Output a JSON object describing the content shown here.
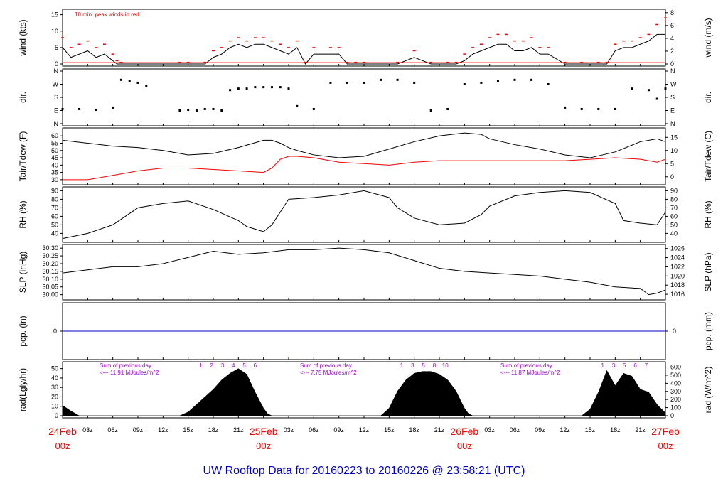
{
  "footer": {
    "title": "UW Rooftop Data for 20160223  to  20160226 @ 23:58:21  (UTC)"
  },
  "colors": {
    "black": "#000000",
    "red": "#ff0000",
    "blue": "#0000cc",
    "purple": "#9900cc",
    "date": "#ff0000"
  },
  "time_axis": {
    "date_labels": [
      {
        "day": "24Feb",
        "hour": "00z",
        "t": 0
      },
      {
        "day": "25Feb",
        "hour": "00z",
        "t": 24
      },
      {
        "day": "26Feb",
        "hour": "00z",
        "t": 48
      },
      {
        "day": "27Feb",
        "hour": "00z",
        "t": 72
      }
    ],
    "hour_ticks": [
      "03z",
      "06z",
      "09z",
      "12z",
      "15z",
      "18z",
      "21z"
    ]
  },
  "chart_data": [
    {
      "id": "wind",
      "type": "line",
      "ylabel_left": "wind (kts)",
      "ylabel_right": "wind (m/s)",
      "ylim": [
        0,
        16
      ],
      "yticks_left": [
        0,
        5,
        10,
        15
      ],
      "ylim_right": [
        0,
        8.2
      ],
      "yticks_right": [
        0,
        2,
        4,
        6,
        8
      ],
      "annotation": "10 min. peak winds in red",
      "x_hours": [
        0,
        1,
        2,
        3,
        4,
        5,
        6,
        6.5,
        7,
        14,
        15,
        17,
        18,
        19,
        20,
        21,
        22,
        23,
        24,
        25,
        26,
        27,
        28,
        29,
        30,
        32,
        33,
        34,
        35,
        36,
        40,
        42,
        44,
        46,
        47,
        48,
        49,
        50,
        51,
        52,
        53,
        54,
        55,
        56,
        57,
        58,
        60,
        62,
        64,
        65,
        66,
        67,
        68,
        69,
        70,
        71,
        72
      ],
      "series": [
        {
          "name": "wind",
          "values": [
            5,
            2,
            3,
            4,
            2,
            3,
            1,
            0,
            0,
            0,
            0,
            0,
            2,
            3,
            5,
            6,
            5,
            6,
            6,
            5,
            4,
            3,
            5,
            0,
            3,
            3,
            3,
            0,
            0,
            0,
            0,
            2,
            0,
            0,
            0,
            1,
            3,
            4,
            5,
            6,
            6,
            4,
            4,
            5,
            3,
            3,
            0,
            0,
            0,
            0,
            4,
            5,
            5,
            6,
            7,
            9,
            9
          ]
        },
        {
          "name": "peak",
          "values": [
            8,
            5,
            6,
            7,
            5,
            6,
            3,
            1,
            0.5,
            0.5,
            0.5,
            0.5,
            4,
            5,
            7,
            8,
            7,
            8,
            8,
            7,
            6,
            5,
            7,
            0.5,
            5,
            5,
            5,
            0.5,
            0.5,
            0.5,
            0.5,
            4,
            0.5,
            0.5,
            0.5,
            3,
            5,
            6,
            8,
            9,
            9,
            7,
            7,
            8,
            5,
            5,
            0.5,
            0.5,
            0.5,
            0.5,
            6,
            7,
            7,
            8,
            9,
            12,
            14
          ]
        }
      ]
    },
    {
      "id": "dir",
      "type": "scatter",
      "ylabel_left": "dir.",
      "ylabel_right": "dir.",
      "yticks_left": [
        "N",
        "E",
        "S",
        "W",
        "N"
      ],
      "yticks_right": [
        "N",
        "E",
        "S",
        "W",
        "N"
      ],
      "ylim": [
        0,
        360
      ],
      "x_hours": [
        0,
        2,
        4,
        6,
        7,
        8,
        9,
        10,
        14,
        15,
        16,
        17,
        18,
        19,
        20,
        21,
        22,
        23,
        24,
        25,
        26,
        27,
        28,
        30,
        32,
        34,
        36,
        38,
        40,
        42,
        44,
        46,
        48,
        50,
        52,
        54,
        56,
        58,
        60,
        62,
        64,
        66,
        68,
        70,
        71,
        72
      ],
      "series": [
        {
          "name": "direction",
          "values": [
            100,
            100,
            95,
            110,
            300,
            290,
            280,
            260,
            90,
            95,
            90,
            100,
            100,
            90,
            230,
            240,
            240,
            250,
            250,
            250,
            250,
            240,
            120,
            100,
            280,
            280,
            280,
            300,
            300,
            280,
            90,
            100,
            270,
            280,
            290,
            300,
            300,
            270,
            110,
            100,
            100,
            100,
            240,
            230,
            170,
            240
          ]
        }
      ]
    },
    {
      "id": "temp",
      "type": "line",
      "ylabel_left": "Tair/Tdew (F)",
      "ylabel_right": "Tair/Tdew (C)",
      "ylim": [
        28,
        64
      ],
      "yticks_left": [
        30,
        35,
        40,
        45,
        50,
        55,
        60
      ],
      "yticks_right": [
        0,
        5,
        10,
        15
      ],
      "x_hours": [
        0,
        3,
        6,
        9,
        12,
        15,
        18,
        21,
        24,
        25,
        26,
        27,
        28,
        30,
        33,
        36,
        39,
        42,
        45,
        48,
        50,
        51,
        54,
        57,
        60,
        63,
        66,
        69,
        71,
        72
      ],
      "series": [
        {
          "name": "Tair",
          "values": [
            57,
            55,
            53,
            52,
            50,
            47,
            48,
            52,
            57,
            57,
            55,
            52,
            50,
            47,
            45,
            46,
            51,
            56,
            60,
            62,
            61,
            58,
            54,
            51,
            47,
            45,
            49,
            56,
            58,
            56
          ]
        },
        {
          "name": "Tdew",
          "values": [
            30,
            30,
            33,
            36,
            38,
            38,
            37,
            36,
            35,
            38,
            44,
            46,
            46,
            45,
            42,
            41,
            40,
            42,
            43,
            43,
            43,
            43,
            43,
            43,
            43,
            44,
            45,
            44,
            42,
            44
          ]
        }
      ]
    },
    {
      "id": "rh",
      "type": "line",
      "ylabel_left": "RH (%)",
      "ylabel_right": "RH (%)",
      "ylim": [
        32,
        92
      ],
      "yticks_left": [
        40,
        50,
        60,
        70,
        80,
        90
      ],
      "yticks_right": [
        40,
        50,
        60,
        70,
        80,
        90
      ],
      "x_hours": [
        0,
        3,
        6,
        9,
        12,
        15,
        18,
        21,
        22,
        23,
        24,
        25,
        27,
        30,
        33,
        36,
        39,
        40,
        42,
        45,
        48,
        50,
        51,
        54,
        57,
        60,
        63,
        66,
        67,
        69,
        71,
        72
      ],
      "series": [
        {
          "name": "RH",
          "values": [
            34,
            40,
            50,
            70,
            75,
            78,
            68,
            55,
            48,
            45,
            42,
            50,
            80,
            82,
            85,
            90,
            82,
            70,
            58,
            50,
            52,
            62,
            72,
            84,
            88,
            90,
            88,
            75,
            55,
            52,
            50,
            65
          ]
        }
      ]
    },
    {
      "id": "slp",
      "type": "line",
      "ylabel_left": "SLP (inHg)",
      "ylabel_right": "SLP (hPa)",
      "ylim": [
        29.98,
        30.31
      ],
      "yticks_left": [
        "30.00",
        "30.05",
        "30.10",
        "30.15",
        "30.20",
        "30.25",
        "30.30"
      ],
      "yticks_right": [
        "1016",
        "1018",
        "1020",
        "1022",
        "1024",
        "1026"
      ],
      "x_hours": [
        0,
        3,
        6,
        9,
        12,
        15,
        18,
        21,
        24,
        27,
        30,
        33,
        36,
        39,
        42,
        45,
        48,
        51,
        54,
        57,
        60,
        63,
        66,
        69,
        70,
        71,
        72
      ],
      "series": [
        {
          "name": "SLP",
          "values": [
            30.14,
            30.16,
            30.18,
            30.18,
            30.2,
            30.24,
            30.28,
            30.26,
            30.27,
            30.29,
            30.29,
            30.3,
            30.29,
            30.27,
            30.22,
            30.17,
            30.15,
            30.14,
            30.13,
            30.12,
            30.1,
            30.08,
            30.05,
            30.04,
            30.0,
            30.01,
            30.03
          ]
        }
      ]
    },
    {
      "id": "pcp",
      "type": "line",
      "ylabel_left": "pcp. (in)",
      "ylabel_right": "pcp. (mm)",
      "yticks_left": [
        "0"
      ],
      "yticks_right": [
        "0"
      ],
      "x_hours": [
        0,
        72
      ],
      "series": [
        {
          "name": "precip",
          "values": [
            0,
            0
          ]
        }
      ]
    },
    {
      "id": "rad",
      "type": "area",
      "ylabel_left": "rad(Lgly/hr)",
      "ylabel_right": "rad (W/m^2)",
      "ylim": [
        0,
        55
      ],
      "yticks_left": [
        0,
        10,
        20,
        30,
        40,
        50
      ],
      "yticks_right": [
        0,
        100,
        200,
        300,
        400,
        500,
        600
      ],
      "x_hours": [
        0,
        1,
        2,
        14,
        15,
        16,
        17,
        18,
        19,
        20,
        21,
        22,
        23,
        24,
        24.5,
        25,
        38,
        39,
        40,
        41,
        42,
        43,
        44,
        45,
        46,
        47,
        48,
        48.5,
        49,
        62,
        63,
        64,
        65,
        66,
        67,
        68,
        69,
        70,
        71,
        72
      ],
      "series": [
        {
          "name": "radiation",
          "values": [
            11,
            5,
            0,
            0,
            4,
            12,
            20,
            28,
            38,
            45,
            50,
            44,
            25,
            8,
            2,
            0,
            0,
            8,
            26,
            38,
            45,
            47,
            47,
            44,
            38,
            26,
            8,
            2,
            0,
            0,
            7,
            25,
            48,
            32,
            45,
            42,
            28,
            25,
            12,
            3
          ]
        }
      ],
      "annotations": [
        {
          "lines": [
            "Sum of previous day",
            "<--- 11.91 MJoules/m^2"
          ]
        },
        {
          "lines": [
            "Sum of previous day",
            "<--- 7.75 MJoules/m^2"
          ]
        },
        {
          "lines": [
            "Sum of previous day",
            "<--- 11.87 MJoules/m^2"
          ]
        }
      ],
      "hour_markers": [
        {
          "labels": [
            "1",
            "2",
            "3",
            "4",
            "5",
            "6"
          ],
          "start": 16.5
        },
        {
          "labels": [
            "1",
            "3",
            "5",
            "8",
            "10"
          ],
          "start": 40.5
        },
        {
          "labels": [
            "1",
            "3",
            "5",
            "6",
            "7"
          ],
          "start": 64.5
        }
      ]
    }
  ]
}
